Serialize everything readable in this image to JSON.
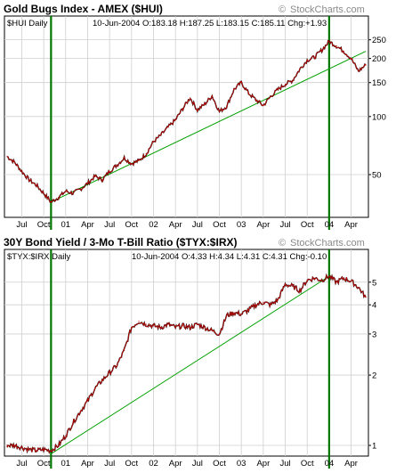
{
  "colors": {
    "price_line": "#cc0000",
    "price_bar": "#000000",
    "trendline": "#00a000",
    "vertical_marker": "#007700",
    "grid": "#cfcfcf",
    "frame": "#000000",
    "watermark": "#8a8a8a"
  },
  "watermark_icon": "copyright-icon",
  "charts": [
    {
      "id": "hui",
      "title": "Gold Bugs Index - AMEX ($HUI)",
      "watermark": "StockCharts.com",
      "symbol_label": "$HUI Daily",
      "quote": "10-Jun-2004 ",
      "quote_prefix": "O:",
      "quote_o": "183.18",
      "quote_h_prefix": "H:",
      "quote_h": "187.25",
      "quote_l_prefix": "L:",
      "quote_l": "183.15",
      "quote_c_prefix": "C:",
      "quote_c": "185.11",
      "quote_chg_prefix": "Chg:",
      "quote_chg": "+1.93"
    },
    {
      "id": "tyx_irx",
      "title": "30Y Bond Yield / 3-Mo T-Bill Ratio ($TYX:$IRX)",
      "watermark": "StockCharts.com",
      "symbol_label": "$TYX:$IRX Daily",
      "quote": "10-Jun-2004 ",
      "quote_prefix": "O:",
      "quote_o": "4.33",
      "quote_h_prefix": "H:",
      "quote_h": "4.34",
      "quote_l_prefix": "L:",
      "quote_l": "4.31",
      "quote_c_prefix": "C:",
      "quote_c": "4.31",
      "quote_chg_prefix": "Chg:",
      "quote_chg": "-0.10"
    }
  ],
  "chart_data": [
    {
      "type": "line",
      "title": "Gold Bugs Index - AMEX ($HUI)",
      "subtitle": "$HUI Daily",
      "y_scale": "log",
      "ylim": [
        30,
        280
      ],
      "y_ticks": [
        50,
        100,
        150,
        200,
        250
      ],
      "x_tick_labels": [
        "Jul",
        "Oct",
        "01",
        "Apr",
        "Jul",
        "Oct",
        "02",
        "Apr",
        "Jul",
        "Oct",
        "03",
        "Apr",
        "Jul",
        "Oct",
        "04",
        "Apr"
      ],
      "x_tick_dates": [
        "2000-07",
        "2000-10",
        "2001-01",
        "2001-04",
        "2001-07",
        "2001-10",
        "2002-01",
        "2002-04",
        "2002-07",
        "2002-10",
        "2003-01",
        "2003-04",
        "2003-07",
        "2003-10",
        "2004-01",
        "2004-04"
      ],
      "xlim": [
        "2000-05",
        "2004-06"
      ],
      "grid": true,
      "series": [
        {
          "x": [
            "2000-05",
            "2000-06",
            "2000-07",
            "2000-08",
            "2000-09",
            "2000-10",
            "2000-11",
            "2000-12",
            "2001-01",
            "2001-02",
            "2001-03",
            "2001-04",
            "2001-05",
            "2001-06",
            "2001-07",
            "2001-08",
            "2001-09",
            "2001-10",
            "2001-11",
            "2001-12",
            "2002-01",
            "2002-02",
            "2002-03",
            "2002-04",
            "2002-05",
            "2002-06",
            "2002-07",
            "2002-08",
            "2002-09",
            "2002-10",
            "2002-11",
            "2002-12",
            "2003-01",
            "2003-02",
            "2003-03",
            "2003-04",
            "2003-05",
            "2003-06",
            "2003-07",
            "2003-08",
            "2003-09",
            "2003-10",
            "2003-11",
            "2003-12",
            "2004-01",
            "2004-02",
            "2004-03",
            "2004-04",
            "2004-05",
            "2004-06"
          ],
          "values": [
            62,
            58,
            52,
            47,
            44,
            40,
            36,
            38,
            41,
            40,
            42,
            45,
            49,
            47,
            52,
            56,
            61,
            57,
            59,
            64,
            74,
            80,
            88,
            96,
            110,
            125,
            108,
            116,
            128,
            106,
            113,
            138,
            150,
            132,
            122,
            114,
            127,
            138,
            147,
            154,
            176,
            196,
            203,
            221,
            245,
            232,
            218,
            200,
            172,
            185
          ]
        }
      ],
      "trendlines": [
        {
          "from": [
            "2000-11",
            36
          ],
          "to": [
            "2004-06",
            218
          ]
        }
      ],
      "vertical_markers": [
        "2000-11",
        "2004-01"
      ]
    },
    {
      "type": "line",
      "title": "30Y Bond Yield / 3-Mo T-Bill Ratio ($TYX:$IRX)",
      "subtitle": "$TYX:$IRX Daily",
      "y_scale": "log",
      "ylim": [
        0.9,
        6.0
      ],
      "y_ticks": [
        1,
        2,
        3,
        4,
        5
      ],
      "x_tick_labels": [
        "Jul",
        "Oct",
        "01",
        "Apr",
        "Jul",
        "Oct",
        "02",
        "Apr",
        "Jul",
        "Oct",
        "03",
        "Apr",
        "Jul",
        "Oct",
        "04",
        "Apr"
      ],
      "x_tick_dates": [
        "2000-07",
        "2000-10",
        "2001-01",
        "2001-04",
        "2001-07",
        "2001-10",
        "2002-01",
        "2002-04",
        "2002-07",
        "2002-10",
        "2003-01",
        "2003-04",
        "2003-07",
        "2003-10",
        "2004-01",
        "2004-04"
      ],
      "xlim": [
        "2000-05",
        "2004-06"
      ],
      "grid": true,
      "series": [
        {
          "x": [
            "2000-05",
            "2000-06",
            "2000-07",
            "2000-08",
            "2000-09",
            "2000-10",
            "2000-11",
            "2000-12",
            "2001-01",
            "2001-02",
            "2001-03",
            "2001-04",
            "2001-05",
            "2001-06",
            "2001-07",
            "2001-08",
            "2001-09",
            "2001-10",
            "2001-11",
            "2001-12",
            "2002-01",
            "2002-02",
            "2002-03",
            "2002-04",
            "2002-05",
            "2002-06",
            "2002-07",
            "2002-08",
            "2002-09",
            "2002-10",
            "2002-11",
            "2002-12",
            "2003-01",
            "2003-02",
            "2003-03",
            "2003-04",
            "2003-05",
            "2003-06",
            "2003-07",
            "2003-08",
            "2003-09",
            "2003-10",
            "2003-11",
            "2003-12",
            "2004-01",
            "2004-02",
            "2004-03",
            "2004-04",
            "2004-05",
            "2004-06"
          ],
          "values": [
            1.0,
            1.0,
            0.98,
            0.96,
            0.95,
            0.96,
            0.95,
            1.0,
            1.1,
            1.25,
            1.4,
            1.55,
            1.75,
            1.9,
            2.05,
            2.2,
            2.55,
            3.2,
            3.4,
            3.3,
            3.25,
            3.2,
            3.3,
            3.2,
            3.25,
            3.2,
            3.3,
            3.2,
            3.1,
            3.0,
            3.6,
            3.7,
            3.65,
            3.8,
            4.0,
            4.1,
            4.0,
            4.2,
            4.9,
            4.8,
            4.6,
            5.1,
            5.2,
            5.1,
            5.3,
            5.0,
            5.2,
            5.05,
            4.75,
            4.31
          ]
        }
      ],
      "trendlines": [
        {
          "from": [
            "2000-11",
            0.92
          ],
          "to": [
            "2004-01",
            5.3
          ]
        }
      ],
      "vertical_markers": [
        "2000-11",
        "2004-01"
      ]
    }
  ]
}
